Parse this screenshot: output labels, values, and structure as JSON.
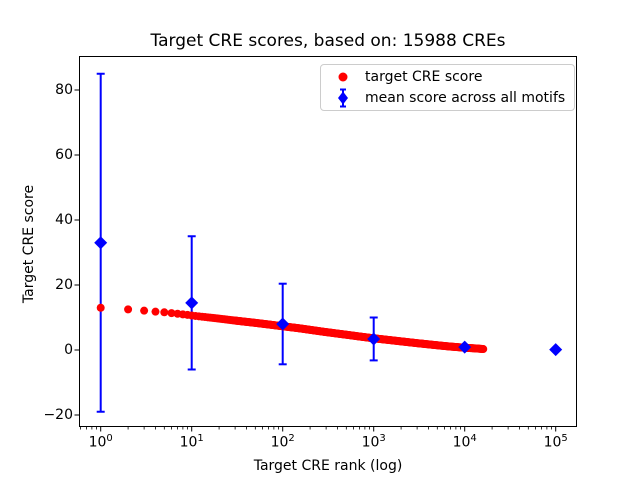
{
  "chart_data": {
    "type": "scatter",
    "title": "Target CRE scores, based on: 15988 CREs",
    "xlabel": "Target CRE rank (log)",
    "ylabel": "Target CRE score",
    "x_scale": "log",
    "xlim": [
      0.59,
      171000
    ],
    "ylim": [
      -23.7,
      90.3
    ],
    "grid": false,
    "x_major_ticks": [
      1,
      10,
      100,
      1000,
      10000,
      100000
    ],
    "x_tick_base": "10",
    "x_tick_exponents": [
      0,
      1,
      2,
      3,
      4,
      5
    ],
    "y_ticks": [
      -20,
      0,
      20,
      40,
      60,
      80
    ],
    "y_tick_labels": [
      "−20",
      "0",
      "20",
      "40",
      "60",
      "80"
    ],
    "colors": {
      "target": "#ff0000",
      "mean": "#0000ff",
      "spine": "#000000",
      "legend_border": "#cccccc"
    },
    "series": [
      {
        "name": "target CRE score",
        "plot_type": "scatter",
        "marker": "circle",
        "color": "#ff0000",
        "n_points": 15988,
        "rank_score_profile": [
          [
            1,
            13.0
          ],
          [
            2,
            12.5
          ],
          [
            3,
            12.1
          ],
          [
            4,
            11.8
          ],
          [
            5,
            11.6
          ],
          [
            6,
            11.35
          ],
          [
            7,
            11.15
          ],
          [
            8,
            10.95
          ],
          [
            9,
            10.8
          ],
          [
            10,
            10.6
          ],
          [
            15,
            10.05
          ],
          [
            20,
            9.65
          ],
          [
            30,
            9.05
          ],
          [
            50,
            8.35
          ],
          [
            70,
            7.85
          ],
          [
            100,
            7.3
          ],
          [
            150,
            6.7
          ],
          [
            200,
            6.2
          ],
          [
            300,
            5.5
          ],
          [
            500,
            4.7
          ],
          [
            700,
            4.15
          ],
          [
            1000,
            3.6
          ],
          [
            1500,
            3.05
          ],
          [
            2000,
            2.65
          ],
          [
            3000,
            2.1
          ],
          [
            5000,
            1.45
          ],
          [
            7000,
            1.05
          ],
          [
            10000,
            0.7
          ],
          [
            13000,
            0.5
          ],
          [
            15988,
            0.3
          ]
        ]
      },
      {
        "name": "mean score across all motifs",
        "plot_type": "errorbar",
        "marker": "diamond",
        "color": "#0000ff",
        "x": [
          1,
          10,
          100,
          1000,
          10000,
          100000
        ],
        "y": [
          33,
          14.5,
          8.0,
          3.4,
          0.9,
          0.1
        ],
        "yerr": [
          52,
          20.5,
          12.4,
          6.6,
          0,
          0
        ]
      }
    ],
    "legend": {
      "position": "upper right",
      "entries": [
        "target CRE score",
        "mean score across all motifs"
      ]
    }
  }
}
